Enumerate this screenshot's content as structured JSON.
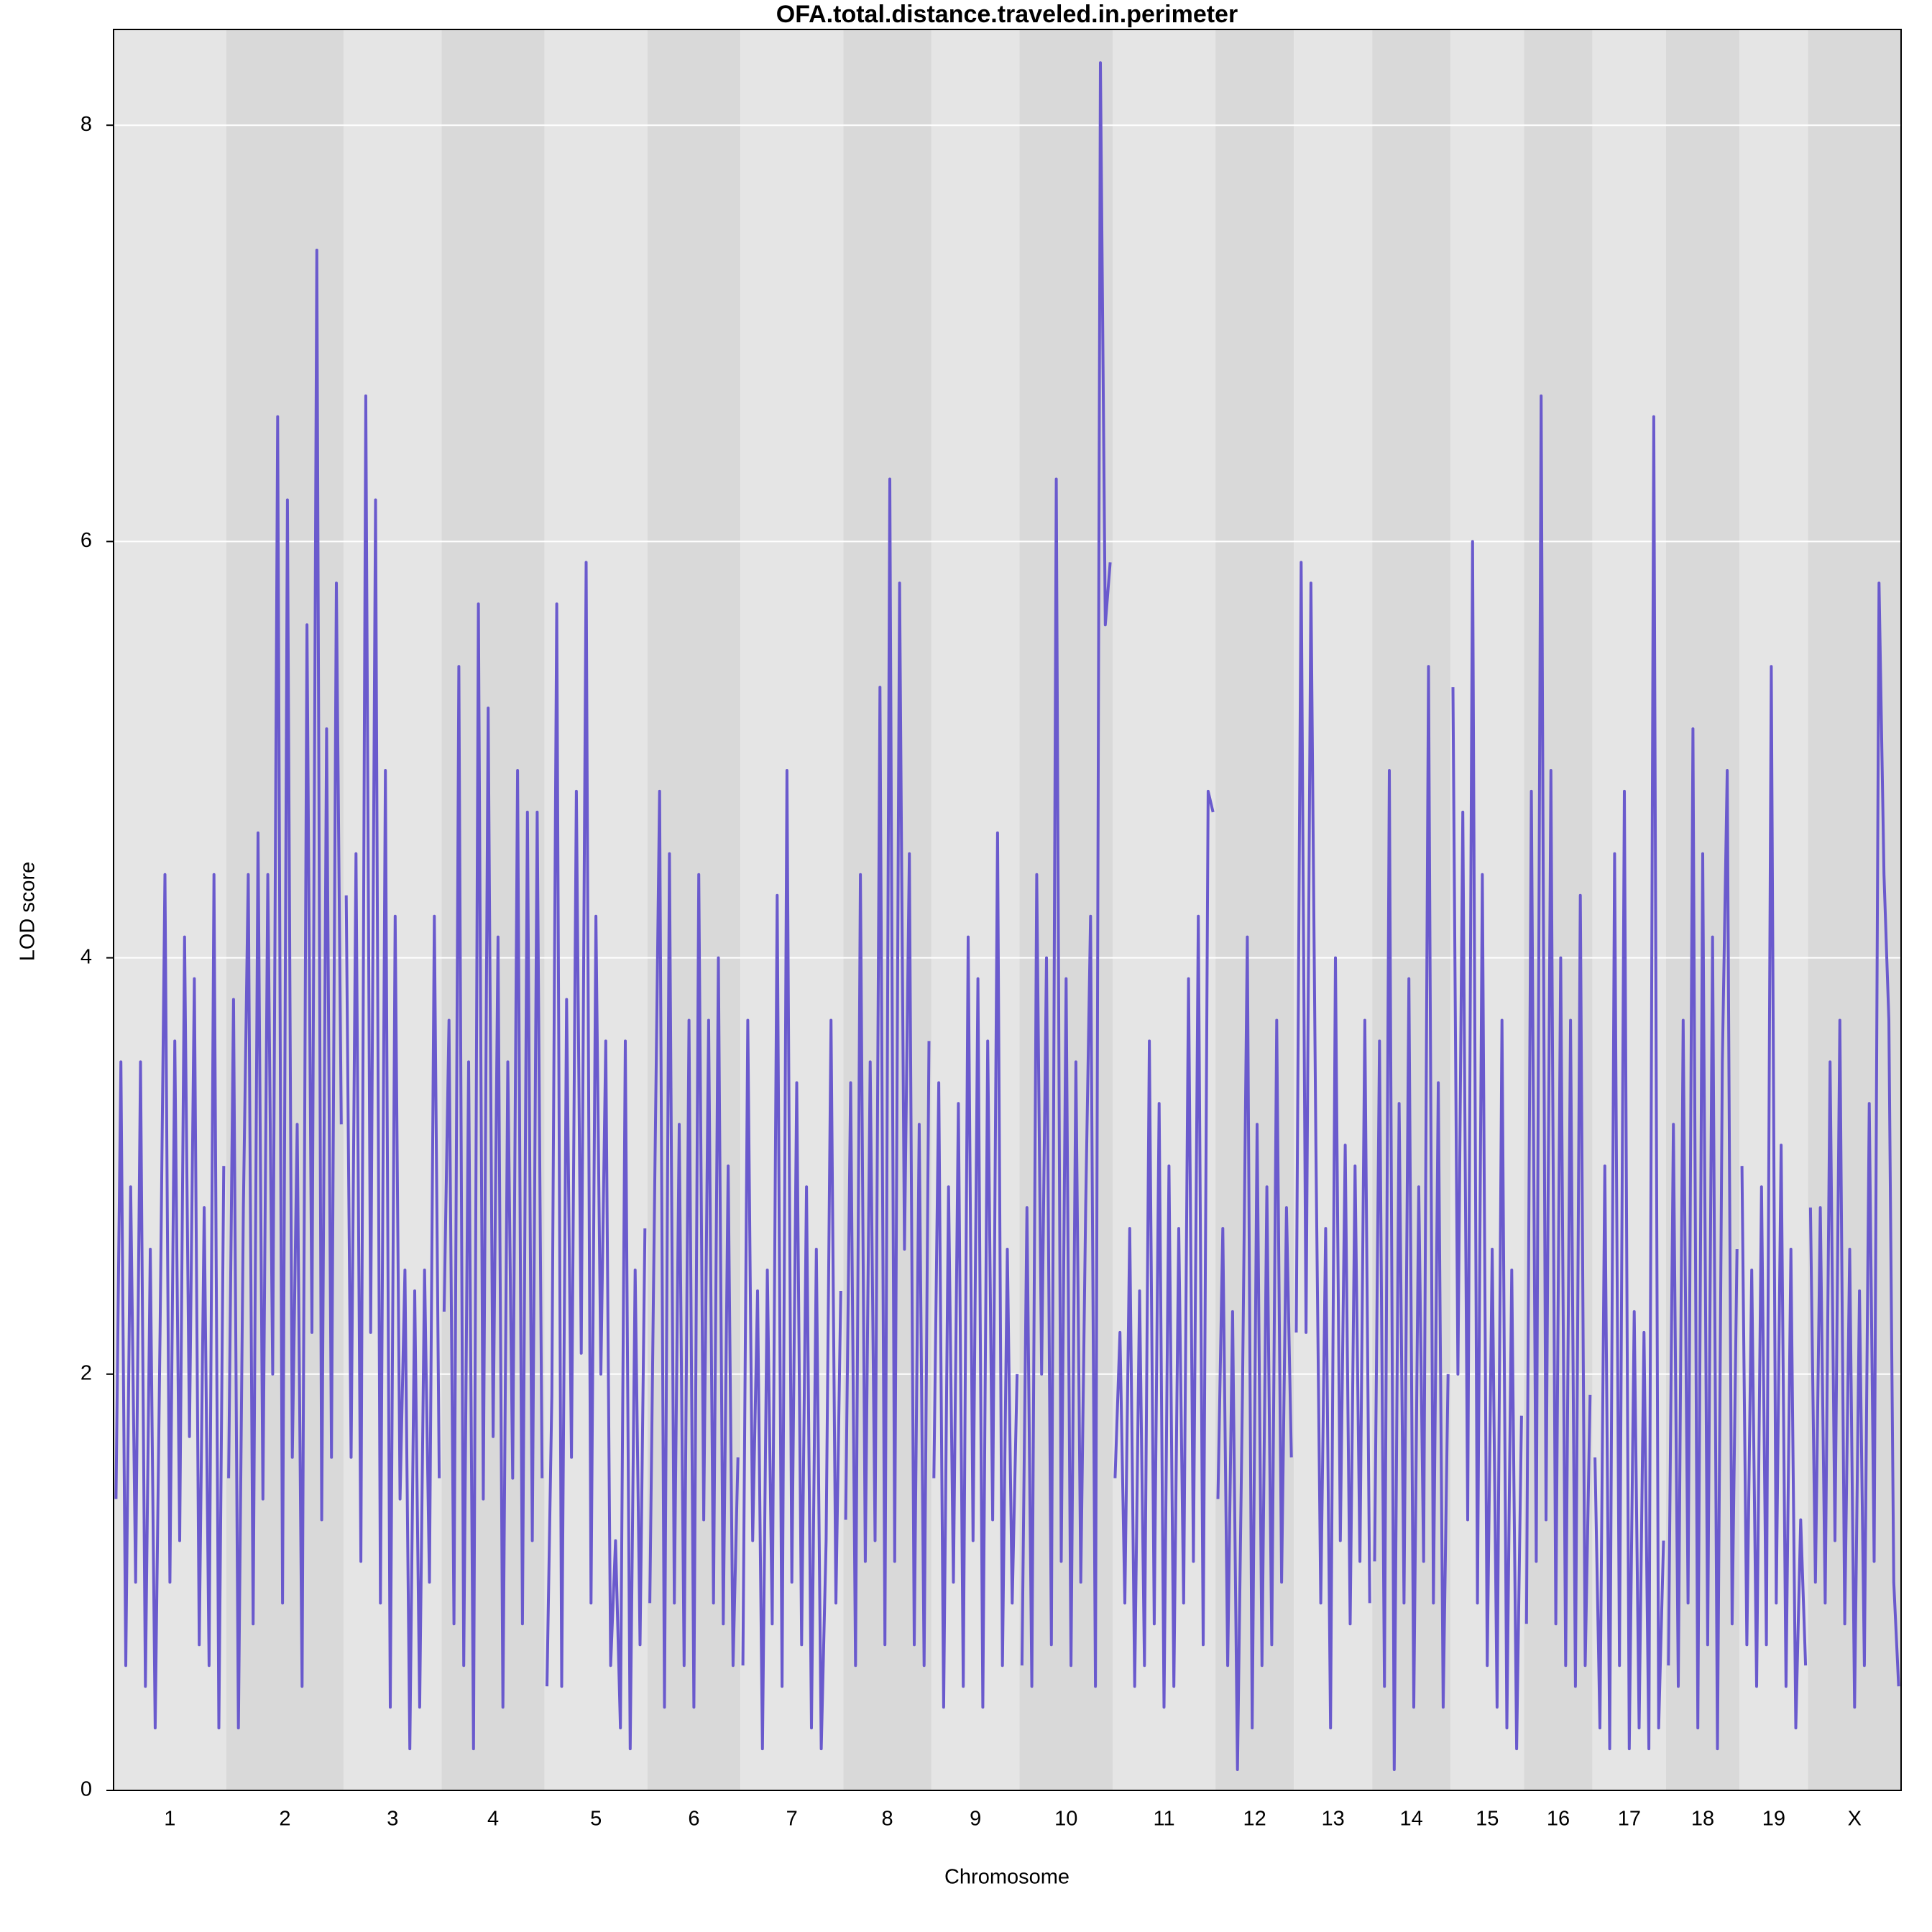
{
  "chart_data": {
    "type": "line",
    "title": "OFA.total.distance.traveled.in.perimeter",
    "x_label": "Chromosome",
    "y_label": "LOD score",
    "color": "#6a5acd",
    "band_colors": [
      "#e5e5e5",
      "#d9d9d9"
    ],
    "grid": true,
    "ylim": [
      0,
      8.46
    ],
    "yticks": [
      0,
      2,
      4,
      6,
      8
    ],
    "chromosomes": [
      {
        "label": "1",
        "values": [
          1.4,
          3.5,
          0.6,
          2.9,
          1.0,
          3.5,
          0.5,
          2.6,
          0.3,
          2.2,
          4.4,
          1.0,
          3.6,
          1.2,
          4.1,
          1.7,
          3.9,
          0.7,
          2.8,
          0.6,
          4.4,
          0.3,
          3.0
        ]
      },
      {
        "label": "2",
        "values": [
          1.5,
          3.8,
          0.3,
          2.8,
          4.4,
          0.8,
          4.6,
          1.4,
          4.4,
          2.0,
          6.6,
          0.9,
          6.2,
          1.6,
          3.2,
          0.5,
          5.6,
          2.2,
          7.4,
          1.3,
          5.1,
          1.6,
          5.8,
          3.2
        ]
      },
      {
        "label": "3",
        "values": [
          4.3,
          1.6,
          4.5,
          1.1,
          6.7,
          2.2,
          6.2,
          0.9,
          4.9,
          0.4,
          4.2,
          1.4,
          2.5,
          0.2,
          2.4,
          0.4,
          2.5,
          1.0,
          4.2,
          1.5
        ]
      },
      {
        "label": "4",
        "values": [
          2.3,
          3.7,
          0.8,
          5.4,
          0.6,
          3.5,
          0.2,
          5.7,
          1.4,
          5.2,
          1.7,
          4.1,
          0.4,
          3.5,
          1.5,
          4.9,
          0.8,
          4.7,
          1.2,
          4.7,
          1.5
        ]
      },
      {
        "label": "5",
        "values": [
          0.5,
          1.9,
          5.7,
          0.5,
          3.8,
          1.6,
          4.8,
          2.1,
          5.9,
          0.9,
          4.2,
          2.0,
          3.6,
          0.6,
          1.2,
          0.3,
          3.6,
          0.2,
          2.5,
          0.7,
          2.7
        ]
      },
      {
        "label": "6",
        "values": [
          0.9,
          2.9,
          4.8,
          0.4,
          4.5,
          0.9,
          3.2,
          0.6,
          3.7,
          0.4,
          4.4,
          1.3,
          3.7,
          0.9,
          4.0,
          0.8,
          3.0,
          0.6,
          1.6
        ]
      },
      {
        "label": "7",
        "values": [
          0.6,
          3.7,
          1.2,
          2.4,
          0.2,
          2.5,
          0.8,
          4.3,
          0.5,
          4.9,
          1.0,
          3.4,
          0.7,
          2.9,
          0.3,
          2.6,
          0.2,
          1.2,
          3.7,
          0.9,
          2.4
        ]
      },
      {
        "label": "8",
        "values": [
          1.3,
          3.4,
          0.6,
          4.4,
          1.1,
          3.5,
          1.2,
          5.3,
          0.7,
          6.3,
          1.1,
          5.8,
          2.6,
          4.5,
          0.7,
          3.2,
          0.6,
          3.6
        ]
      },
      {
        "label": "9",
        "values": [
          1.5,
          3.4,
          0.4,
          2.9,
          1.0,
          3.3,
          0.5,
          4.1,
          1.2,
          3.9,
          0.4,
          3.6,
          1.3,
          4.6,
          0.6,
          2.6,
          0.9,
          2.0
        ]
      },
      {
        "label": "10",
        "values": [
          0.6,
          2.8,
          0.5,
          4.4,
          2.0,
          4.0,
          0.7,
          6.3,
          1.1,
          3.9,
          0.6,
          3.5,
          1.0,
          2.8,
          4.2,
          0.5,
          8.3,
          5.6,
          5.9
        ]
      },
      {
        "label": "11",
        "values": [
          1.5,
          2.2,
          0.9,
          2.7,
          0.5,
          2.4,
          0.6,
          3.6,
          0.8,
          3.3,
          0.4,
          3.0,
          0.5,
          2.7,
          0.9,
          3.9,
          1.1,
          4.2,
          0.7,
          4.8,
          4.7
        ]
      },
      {
        "label": "12",
        "values": [
          1.4,
          2.7,
          0.6,
          2.3,
          0.1,
          1.9,
          4.1,
          0.3,
          3.2,
          0.6,
          2.9,
          0.7,
          3.7,
          1.0,
          2.8,
          1.6
        ]
      },
      {
        "label": "13",
        "values": [
          2.2,
          5.9,
          2.2,
          5.8,
          3.1,
          0.9,
          2.7,
          0.3,
          4.0,
          1.2,
          3.1,
          0.8,
          3.0,
          1.1,
          3.7,
          0.9
        ]
      },
      {
        "label": "14",
        "values": [
          1.1,
          3.6,
          0.5,
          4.9,
          0.1,
          3.3,
          0.9,
          3.9,
          0.4,
          2.9,
          1.1,
          5.4,
          0.9,
          3.4,
          0.4,
          2.0
        ]
      },
      {
        "label": "15",
        "values": [
          5.3,
          2.0,
          4.7,
          1.3,
          6.0,
          0.9,
          4.4,
          0.6,
          2.6,
          0.4,
          3.7,
          0.3,
          2.5,
          0.2,
          1.8
        ]
      },
      {
        "label": "16",
        "values": [
          0.8,
          4.8,
          1.1,
          6.7,
          1.3,
          4.9,
          0.8,
          4.0,
          0.6,
          3.7,
          0.5,
          4.3,
          0.6,
          1.9
        ]
      },
      {
        "label": "17",
        "values": [
          1.6,
          0.3,
          3.0,
          0.2,
          4.5,
          0.6,
          4.8,
          0.2,
          2.3,
          0.3,
          2.2,
          0.2,
          6.6,
          0.3,
          1.2
        ]
      },
      {
        "label": "18",
        "values": [
          0.6,
          3.2,
          0.5,
          3.7,
          0.9,
          5.1,
          0.3,
          4.5,
          0.7,
          4.1,
          0.2,
          3.5,
          4.9,
          0.8,
          2.6
        ]
      },
      {
        "label": "19",
        "values": [
          3.0,
          0.7,
          2.5,
          0.5,
          2.9,
          0.7,
          5.4,
          0.9,
          3.1,
          0.5,
          2.6,
          0.3,
          1.3,
          0.6
        ]
      },
      {
        "label": "X",
        "values": [
          2.8,
          1.0,
          2.8,
          0.9,
          3.5,
          1.2,
          3.7,
          0.8,
          2.6,
          0.4,
          2.4,
          0.6,
          3.3,
          1.1,
          5.8,
          4.4,
          3.7,
          1.0,
          0.5
        ]
      }
    ]
  }
}
